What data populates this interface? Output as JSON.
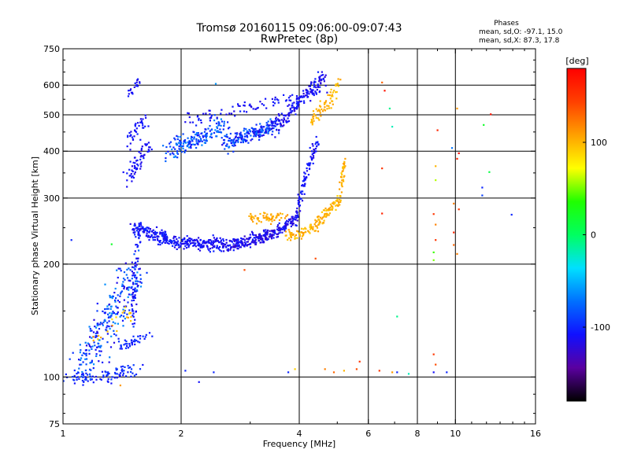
{
  "chart_data": {
    "type": "scatter",
    "title": "Tromsø 20160115 09:06:00-09:07:43",
    "subtitle": "RwPretec (8p)",
    "xlabel": "Frequency [MHz]",
    "ylabel": "Stationary phase Virtual Height [km]",
    "x_scale": "log",
    "y_scale": "log",
    "xlim": [
      1,
      16
    ],
    "ylim": [
      75,
      750
    ],
    "x_ticks": [
      1,
      2,
      4,
      6,
      8,
      10,
      16
    ],
    "x_tick_labels": [
      "1",
      "2",
      "4",
      "6",
      "8",
      "10",
      "16"
    ],
    "x_grid": [
      2,
      4,
      6,
      8,
      10
    ],
    "y_ticks": [
      75,
      100,
      200,
      300,
      400,
      500,
      600,
      750
    ],
    "y_tick_labels": [
      "75",
      "100",
      "200",
      "300",
      "400",
      "500",
      "600",
      "750"
    ],
    "y_grid": [
      100,
      200,
      300,
      400,
      500,
      600
    ],
    "grid": true,
    "stats": {
      "header": "Phases",
      "line_o": "mean, sd,O: -97.1, 15.0",
      "line_x": "mean, sd,X:  87.3, 17.8"
    },
    "colorbar": {
      "label": "[deg]",
      "min": -180,
      "max": 180,
      "ticks": [
        100,
        0,
        -100
      ],
      "tick_labels": [
        "100",
        "0",
        "-100"
      ],
      "colors": [
        "#000000",
        "#5a00a0",
        "#1010ff",
        "#0070ff",
        "#00e0ff",
        "#00ff60",
        "#20ff00",
        "#ffff00",
        "#ffa000",
        "#ff4000",
        "#ff0000"
      ]
    },
    "series": [
      {
        "segments": [
          {
            "f0": 1.03,
            "f1": 1.55,
            "h0": 98,
            "h1": 104,
            "n": 90,
            "p0": -110,
            "p1": -90,
            "jf": 0.03,
            "jh": 0.03
          },
          {
            "f0": 1.1,
            "f1": 1.55,
            "h0": 104,
            "h1": 190,
            "n": 260,
            "p0": -120,
            "p1": -60,
            "jf": 0.05,
            "jh": 0.08
          },
          {
            "f0": 1.42,
            "f1": 1.65,
            "h0": 120,
            "h1": 130,
            "n": 40,
            "p0": -110,
            "p1": -90,
            "jf": 0.02,
            "jh": 0.02
          },
          {
            "f0": 1.5,
            "f1": 1.55,
            "h0": 140,
            "h1": 230,
            "n": 60,
            "p0": -120,
            "p1": -100,
            "jf": 0.015,
            "jh": 0.03
          },
          {
            "f0": 1.52,
            "f1": 1.95,
            "h0": 250,
            "h1": 228,
            "n": 170,
            "p0": -120,
            "p1": -95,
            "jf": 0.02,
            "jh": 0.03
          },
          {
            "f0": 1.95,
            "f1": 2.6,
            "h0": 228,
            "h1": 226,
            "n": 160,
            "p0": -120,
            "p1": -100,
            "jf": 0.02,
            "jh": 0.025
          },
          {
            "f0": 2.6,
            "f1": 3.4,
            "h0": 222,
            "h1": 240,
            "n": 190,
            "p0": -130,
            "p1": -100,
            "jf": 0.02,
            "jh": 0.025
          },
          {
            "f0": 3.4,
            "f1": 3.9,
            "h0": 240,
            "h1": 262,
            "n": 80,
            "p0": -130,
            "p1": -100,
            "jf": 0.015,
            "jh": 0.02
          },
          {
            "f0": 3.9,
            "f1": 4.1,
            "h0": 262,
            "h1": 330,
            "n": 40,
            "p0": -120,
            "p1": -100,
            "jf": 0.008,
            "jh": 0.03
          },
          {
            "f0": 4.1,
            "f1": 4.45,
            "h0": 330,
            "h1": 430,
            "n": 60,
            "p0": -120,
            "p1": -100,
            "jf": 0.008,
            "jh": 0.03
          },
          {
            "f0": 1.45,
            "f1": 1.65,
            "h0": 330,
            "h1": 420,
            "n": 60,
            "p0": -120,
            "p1": -100,
            "jf": 0.02,
            "jh": 0.04
          },
          {
            "f0": 1.45,
            "f1": 1.65,
            "h0": 420,
            "h1": 500,
            "n": 40,
            "p0": -120,
            "p1": -100,
            "jf": 0.02,
            "jh": 0.04
          },
          {
            "f0": 1.45,
            "f1": 1.6,
            "h0": 560,
            "h1": 630,
            "n": 20,
            "p0": -120,
            "p1": -100,
            "jf": 0.01,
            "jh": 0.02
          },
          {
            "f0": 1.85,
            "f1": 2.6,
            "h0": 400,
            "h1": 470,
            "n": 170,
            "p0": -110,
            "p1": -60,
            "jf": 0.03,
            "jh": 0.04
          },
          {
            "f0": 2.6,
            "f1": 3.5,
            "h0": 420,
            "h1": 470,
            "n": 200,
            "p0": -120,
            "p1": -70,
            "jf": 0.02,
            "jh": 0.03
          },
          {
            "f0": 3.5,
            "f1": 4.65,
            "h0": 470,
            "h1": 640,
            "n": 150,
            "p0": -125,
            "p1": -100,
            "jf": 0.015,
            "jh": 0.03
          },
          {
            "f0": 2.0,
            "f1": 4.6,
            "h0": 480,
            "h1": 580,
            "n": 90,
            "p0": -120,
            "p1": -100,
            "jf": 0.02,
            "jh": 0.03
          }
        ]
      },
      {
        "segments": [
          {
            "f0": 3.0,
            "f1": 3.7,
            "h0": 265,
            "h1": 268,
            "n": 60,
            "p0": 95,
            "p1": 115,
            "jf": 0.015,
            "jh": 0.02
          },
          {
            "f0": 3.7,
            "f1": 4.4,
            "h0": 236,
            "h1": 250,
            "n": 60,
            "p0": 90,
            "p1": 115,
            "jf": 0.02,
            "jh": 0.02
          },
          {
            "f0": 4.4,
            "f1": 5.1,
            "h0": 255,
            "h1": 300,
            "n": 80,
            "p0": 90,
            "p1": 110,
            "jf": 0.015,
            "jh": 0.02
          },
          {
            "f0": 5.05,
            "f1": 5.25,
            "h0": 300,
            "h1": 390,
            "n": 30,
            "p0": 90,
            "p1": 110,
            "jf": 0.006,
            "jh": 0.03
          },
          {
            "f0": 4.3,
            "f1": 4.9,
            "h0": 480,
            "h1": 560,
            "n": 50,
            "p0": 95,
            "p1": 110,
            "jf": 0.015,
            "jh": 0.03
          },
          {
            "f0": 4.8,
            "f1": 5.1,
            "h0": 560,
            "h1": 630,
            "n": 15,
            "p0": 90,
            "p1": 110,
            "jf": 0.01,
            "jh": 0.02
          },
          {
            "f0": 1.2,
            "f1": 1.5,
            "h0": 125,
            "h1": 150,
            "n": 20,
            "p0": 80,
            "p1": 120,
            "jf": 0.03,
            "jh": 0.04
          }
        ]
      },
      {
        "points": [
          [
            2.05,
            104,
            -100
          ],
          [
            2.22,
            97,
            -110
          ],
          [
            2.42,
            103,
            -100
          ],
          [
            3.75,
            103,
            -100
          ],
          [
            3.9,
            105,
            90
          ],
          [
            4.65,
            105,
            120
          ],
          [
            4.9,
            103,
            130
          ],
          [
            5.2,
            104,
            100
          ],
          [
            5.6,
            105,
            140
          ],
          [
            5.7,
            110,
            150
          ],
          [
            6.4,
            104,
            150
          ],
          [
            6.9,
            103,
            110
          ],
          [
            7.1,
            103,
            -100
          ],
          [
            7.6,
            102,
            -20
          ],
          [
            8.8,
            103,
            -110
          ],
          [
            9.5,
            103,
            -100
          ],
          [
            6.5,
            610,
            130
          ],
          [
            6.6,
            580,
            170
          ],
          [
            6.8,
            520,
            -10
          ],
          [
            6.9,
            465,
            -20
          ],
          [
            6.5,
            360,
            150
          ],
          [
            6.5,
            273,
            160
          ],
          [
            9.0,
            455,
            160
          ],
          [
            8.9,
            365,
            100
          ],
          [
            8.9,
            335,
            60
          ],
          [
            8.8,
            272,
            150
          ],
          [
            8.9,
            255,
            120
          ],
          [
            8.9,
            232,
            150
          ],
          [
            8.8,
            215,
            40
          ],
          [
            8.8,
            205,
            50
          ],
          [
            10.1,
            520,
            110
          ],
          [
            10.2,
            395,
            170
          ],
          [
            10.1,
            382,
            160
          ],
          [
            9.8,
            408,
            -70
          ],
          [
            9.9,
            290,
            120
          ],
          [
            10.2,
            280,
            150
          ],
          [
            9.9,
            243,
            160
          ],
          [
            9.9,
            225,
            130
          ],
          [
            10.1,
            213,
            120
          ],
          [
            11.8,
            470,
            20
          ],
          [
            12.3,
            502,
            170
          ],
          [
            12.2,
            352,
            10
          ],
          [
            11.7,
            320,
            -100
          ],
          [
            11.7,
            305,
            -90
          ],
          [
            13.9,
            271,
            -100
          ],
          [
            8.8,
            115,
            150
          ],
          [
            8.9,
            108,
            140
          ],
          [
            7.1,
            145,
            -10
          ],
          [
            1.05,
            232,
            -100
          ],
          [
            1.33,
            226,
            20
          ],
          [
            2.45,
            605,
            -60
          ],
          [
            2.9,
            193,
            140
          ],
          [
            4.4,
            207,
            140
          ],
          [
            1.4,
            95,
            110
          ]
        ]
      }
    ]
  }
}
